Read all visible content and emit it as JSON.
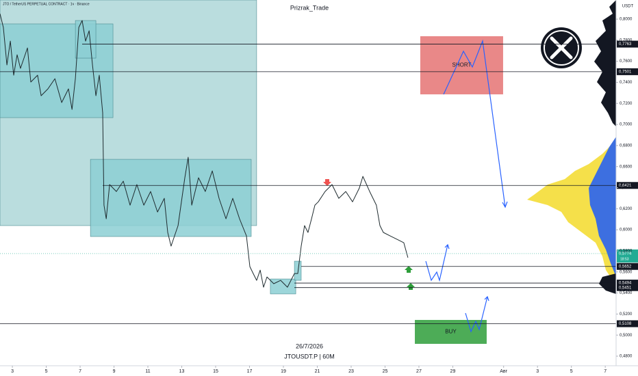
{
  "header": "JTO / TetherUS PERPETUAL CONTRACT · 1ч · Binance",
  "watermark": "Prizrak_Trade",
  "date": "26/7/2026",
  "symbol": "JTOUSDT.P | 60M",
  "currency": "USDT",
  "chart_data": {
    "type": "line",
    "color": "#1e2a2e",
    "x": [
      2.27,
      2.47,
      2.68,
      2.88,
      3.08,
      3.28,
      3.48,
      3.89,
      4.09,
      4.49,
      4.7,
      5.1,
      5.51,
      5.91,
      6.31,
      6.52,
      6.72,
      6.92,
      7.12,
      7.32,
      7.53,
      7.73,
      7.93,
      8.13,
      8.33,
      8.41,
      8.54,
      8.74,
      9.14,
      9.55,
      9.95,
      10.35,
      10.76,
      11.16,
      11.57,
      11.97,
      12.17,
      12.37,
      12.78,
      13.18,
      13.38,
      13.59,
      13.99,
      14.39,
      14.8,
      15.2,
      15.61,
      16.01,
      16.41,
      16.82,
      17.02,
      17.22,
      17.42,
      17.63,
      17.83,
      18.03,
      18.43,
      18.84,
      19.24,
      19.65,
      19.85,
      20.05,
      20.25,
      20.45,
      20.66,
      20.86,
      21.06,
      21.46,
      21.87,
      22.27,
      22.68,
      23.08,
      23.48,
      23.69,
      24.09,
      24.49,
      24.7,
      24.9,
      25.3,
      25.71,
      26.11,
      26.35
    ],
    "values": [
      0.8052,
      0.7922,
      0.7565,
      0.7792,
      0.7468,
      0.7662,
      0.7533,
      0.7727,
      0.7403,
      0.7468,
      0.7273,
      0.7338,
      0.7435,
      0.7208,
      0.7338,
      0.7143,
      0.7435,
      0.7922,
      0.7987,
      0.7792,
      0.789,
      0.7565,
      0.7273,
      0.7468,
      0.7111,
      0.6234,
      0.6105,
      0.6429,
      0.6364,
      0.6462,
      0.6234,
      0.6429,
      0.6234,
      0.6364,
      0.6169,
      0.6299,
      0.5975,
      0.5845,
      0.604,
      0.6494,
      0.6689,
      0.6234,
      0.6494,
      0.6364,
      0.6559,
      0.6299,
      0.6105,
      0.6299,
      0.6105,
      0.5942,
      0.565,
      0.5585,
      0.552,
      0.5617,
      0.5455,
      0.5552,
      0.5488,
      0.552,
      0.5455,
      0.5585,
      0.5585,
      0.5845,
      0.604,
      0.5975,
      0.6105,
      0.6234,
      0.6266,
      0.6364,
      0.6429,
      0.6299,
      0.6364,
      0.6266,
      0.6396,
      0.6507,
      0.6364,
      0.6234,
      0.604,
      0.5975,
      0.5942,
      0.5909,
      0.5877,
      0.5735
    ],
    "xlim": [
      2.27,
      38.64
    ],
    "ylim": [
      0.4709,
      0.8182
    ],
    "xticks": [
      3,
      5,
      7,
      9,
      11,
      13,
      15,
      17,
      19,
      21,
      23,
      25,
      27,
      29,
      {
        "value": 32,
        "label": "Авг"
      },
      {
        "value": 34,
        "label": "3"
      },
      {
        "value": 36,
        "label": "5"
      },
      {
        "value": 38,
        "label": "7"
      }
    ],
    "yticks": [
      {
        "value": 0.8,
        "label": "0,8000"
      },
      {
        "value": 0.78,
        "label": "0,7800"
      },
      {
        "value": 0.76,
        "label": "0,7600"
      },
      {
        "value": 0.74,
        "label": "0,7400"
      },
      {
        "value": 0.72,
        "label": "0,7200"
      },
      {
        "value": 0.7,
        "label": "0,7000"
      },
      {
        "value": 0.68,
        "label": "0,6800"
      },
      {
        "value": 0.66,
        "label": "0,6600"
      },
      {
        "value": 0.64,
        "label": "0,6400"
      },
      {
        "value": 0.62,
        "label": "0,6200"
      },
      {
        "value": 0.6,
        "label": "0,6000"
      },
      {
        "value": 0.58,
        "label": "0,5800"
      },
      {
        "value": 0.56,
        "label": "0,5600"
      },
      {
        "value": 0.54,
        "label": "0,5400"
      },
      {
        "value": 0.52,
        "label": "0,5200"
      },
      {
        "value": 0.5,
        "label": "0,5000"
      },
      {
        "value": 0.48,
        "label": "0,4800"
      }
    ],
    "levels": [
      {
        "value": 0.7763,
        "label": "0,7763"
      },
      {
        "value": 0.7501,
        "label": "0,7501"
      },
      {
        "value": 0.6421,
        "label": "0,6421"
      },
      {
        "value": 0.5652,
        "label": "0,5652"
      },
      {
        "value": 0.5494,
        "label": "0,5494"
      },
      {
        "value": 0.5451,
        "label": "0,5451"
      },
      {
        "value": 0.5108,
        "label": "0,5108"
      }
    ],
    "last_price": {
      "value": 0.5774,
      "label": "0,5774",
      "timer": "18:53",
      "color": "#22ab94"
    },
    "zones": [
      {
        "x": [
          2.27,
          17.42
        ],
        "y": [
          0.604,
          0.8182
        ],
        "color": "#a9d4d6"
      },
      {
        "x": [
          2.27,
          8.94
        ],
        "y": [
          0.7065,
          0.7955
        ],
        "color": "#8ccfd3"
      },
      {
        "x": [
          6.72,
          7.93
        ],
        "y": [
          0.763,
          0.7987
        ],
        "color": "#8ccfd3"
      },
      {
        "x": [
          7.61,
          17.1
        ],
        "y": [
          0.5936,
          0.6669
        ],
        "color": "#8ccfd3"
      },
      {
        "x": [
          18.23,
          19.73
        ],
        "y": [
          0.5391,
          0.5533
        ],
        "color": "#8ccfd3"
      },
      {
        "x": [
          19.65,
          20.05
        ],
        "y": [
          0.552,
          0.5702
        ],
        "color": "#8ccfd3"
      },
      {
        "x": [
          27.08,
          31.97
        ],
        "y": [
          0.7286,
          0.7838
        ],
        "color": "#e57373",
        "label": "SHORT"
      },
      {
        "x": [
          26.76,
          31.0
        ],
        "y": [
          0.4917,
          0.5144
        ],
        "color": "#2e9e3a",
        "label": "BUY"
      }
    ]
  }
}
